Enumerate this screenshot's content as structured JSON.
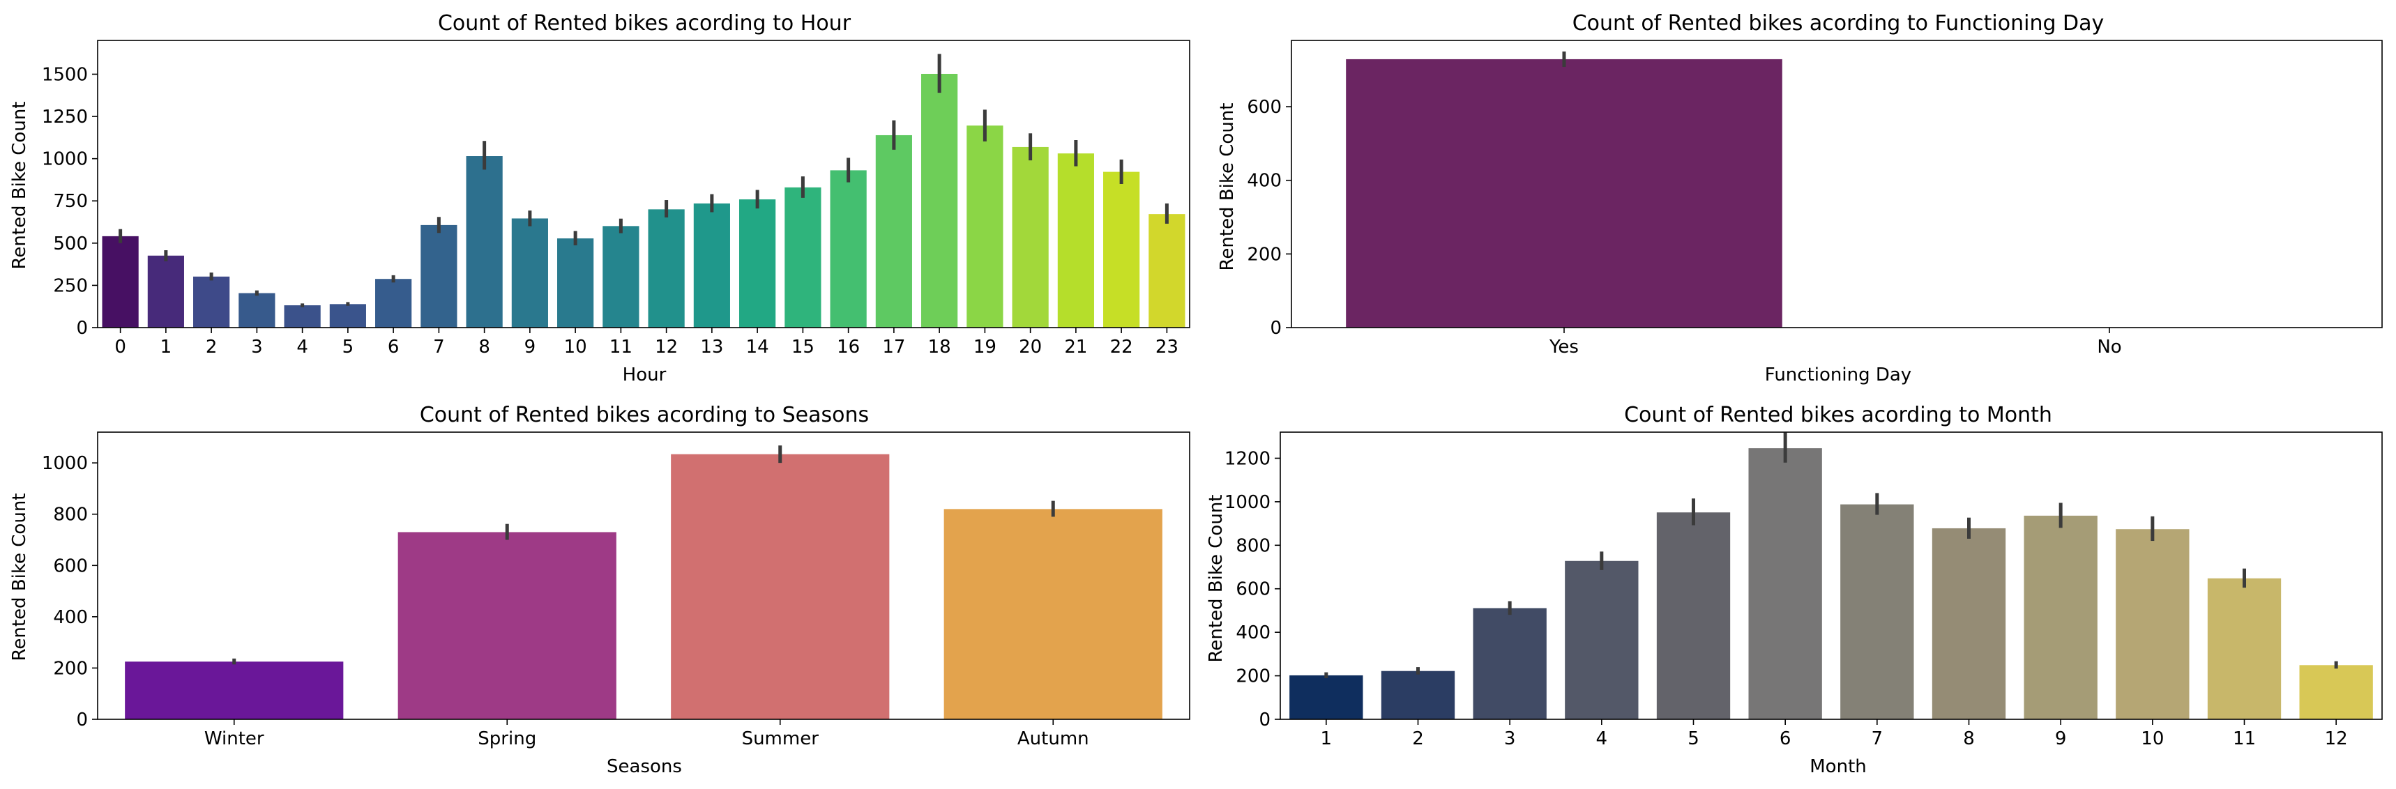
{
  "chart_data": [
    {
      "type": "bar",
      "title": "Count of Rented bikes acording to Hour",
      "xlabel": "Hour",
      "ylabel": "Rented Bike Count",
      "categories": [
        "0",
        "1",
        "2",
        "3",
        "4",
        "5",
        "6",
        "7",
        "8",
        "9",
        "10",
        "11",
        "12",
        "13",
        "14",
        "15",
        "16",
        "17",
        "18",
        "19",
        "20",
        "21",
        "22",
        "23"
      ],
      "values": [
        541,
        426,
        302,
        204,
        132,
        139,
        288,
        607,
        1015,
        646,
        528,
        601,
        700,
        735,
        759,
        830,
        931,
        1139,
        1502,
        1196,
        1069,
        1031,
        922,
        672
      ],
      "errors": [
        [
          500,
          583
        ],
        [
          393,
          458
        ],
        [
          279,
          326
        ],
        [
          189,
          220
        ],
        [
          121,
          143
        ],
        [
          129,
          151
        ],
        [
          267,
          310
        ],
        [
          560,
          655
        ],
        [
          935,
          1105
        ],
        [
          600,
          693
        ],
        [
          487,
          572
        ],
        [
          559,
          645
        ],
        [
          652,
          755
        ],
        [
          683,
          790
        ],
        [
          705,
          815
        ],
        [
          768,
          895
        ],
        [
          860,
          1005
        ],
        [
          1053,
          1227
        ],
        [
          1390,
          1620
        ],
        [
          1102,
          1290
        ],
        [
          990,
          1150
        ],
        [
          955,
          1110
        ],
        [
          850,
          995
        ],
        [
          615,
          735
        ]
      ],
      "ylim": [
        0,
        1700
      ],
      "yticks": [
        0,
        250,
        500,
        750,
        1000,
        1250,
        1500
      ],
      "colors": [
        "#471063",
        "#472a7a",
        "#3e4a89",
        "#375a8c",
        "#3b528b",
        "#3a548c",
        "#365c8d",
        "#33638d",
        "#2d708e",
        "#2a788e",
        "#297a8e",
        "#25858e",
        "#21918c",
        "#1f988b",
        "#22a884",
        "#2fb47c",
        "#44bf70",
        "#5ec962",
        "#6ece58",
        "#8bd646",
        "#a2d83a",
        "#b5de2b",
        "#c6df26",
        "#d2d72c"
      ],
      "grid": false,
      "errorbars": true
    },
    {
      "type": "bar",
      "title": "Count of Rented bikes acording to Functioning Day",
      "xlabel": "Functioning Day",
      "ylabel": "Rented Bike Count",
      "categories": [
        "Yes",
        "No"
      ],
      "values": [
        729,
        0
      ],
      "errors": [
        [
          708,
          750
        ],
        [
          0,
          0
        ]
      ],
      "ylim": [
        0,
        780
      ],
      "yticks": [
        0,
        200,
        400,
        600
      ],
      "colors": [
        "#6b2562",
        "#6b2562"
      ],
      "grid": false,
      "errorbars": true
    },
    {
      "type": "bar",
      "title": "Count of Rented bikes acording to Seasons",
      "xlabel": "Seasons",
      "ylabel": "Rented Bike Count",
      "categories": [
        "Winter",
        "Spring",
        "Summer",
        "Autumn"
      ],
      "values": [
        225,
        730,
        1034,
        820
      ],
      "errors": [
        [
          214,
          237
        ],
        [
          700,
          762
        ],
        [
          1000,
          1068
        ],
        [
          790,
          852
        ]
      ],
      "ylim": [
        0,
        1120
      ],
      "yticks": [
        0,
        200,
        400,
        600,
        800,
        1000
      ],
      "colors": [
        "#6a1799",
        "#9e3a86",
        "#d17070",
        "#e3a34d"
      ],
      "grid": false,
      "errorbars": true
    },
    {
      "type": "bar",
      "title": "Count of Rented bikes acording to Month",
      "xlabel": "Month",
      "ylabel": "Rented Bike Count",
      "categories": [
        "1",
        "2",
        "3",
        "4",
        "5",
        "6",
        "7",
        "8",
        "9",
        "10",
        "11",
        "12"
      ],
      "values": [
        202,
        222,
        511,
        728,
        951,
        1246,
        988,
        878,
        936,
        874,
        648,
        249
      ],
      "errors": [
        [
          189,
          216
        ],
        [
          206,
          240
        ],
        [
          480,
          543
        ],
        [
          686,
          771
        ],
        [
          892,
          1015
        ],
        [
          1180,
          1318
        ],
        [
          940,
          1040
        ],
        [
          830,
          927
        ],
        [
          880,
          995
        ],
        [
          820,
          933
        ],
        [
          605,
          693
        ],
        [
          233,
          267
        ]
      ],
      "ylim": [
        0,
        1320
      ],
      "yticks": [
        0,
        200,
        400,
        600,
        800,
        1000,
        1200
      ],
      "colors": [
        "#0f2e5e",
        "#2b3d63",
        "#414b65",
        "#535868",
        "#63636a",
        "#777676",
        "#848176",
        "#958c75",
        "#a59c76",
        "#b5a674",
        "#c8b76a",
        "#d8c856"
      ],
      "grid": false,
      "errorbars": true
    }
  ]
}
